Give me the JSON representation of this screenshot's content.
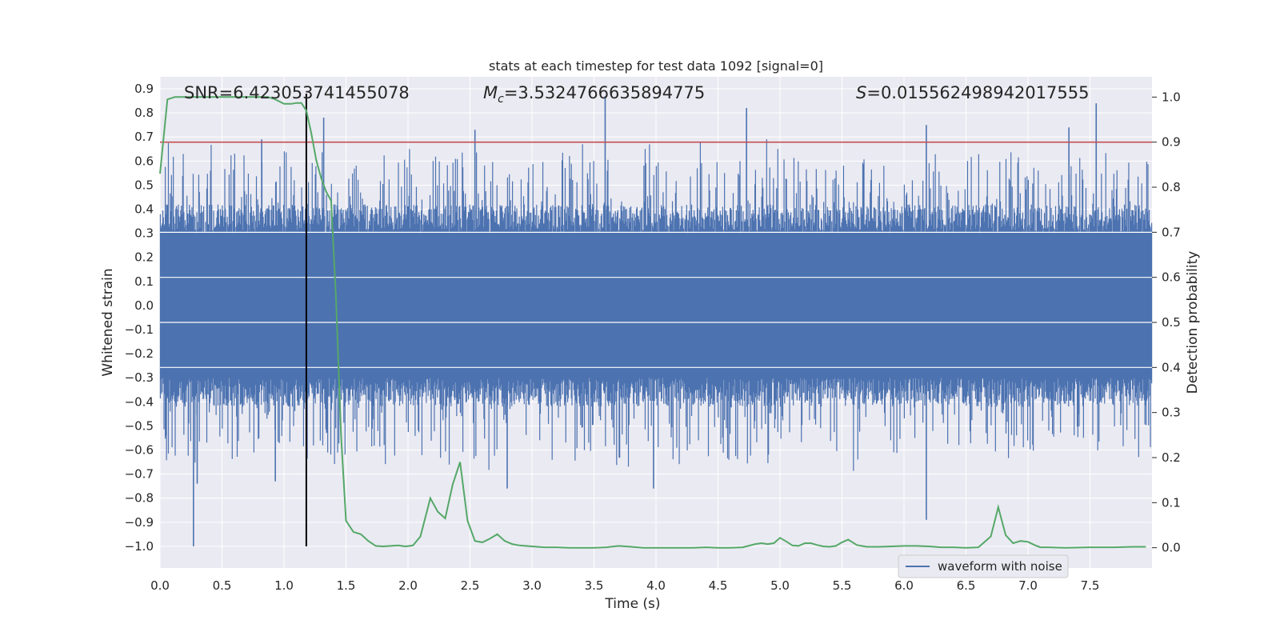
{
  "chart_data": {
    "type": "line",
    "title": "stats at each timestep for test data 1092 [signal=0]",
    "xlabel": "Time (s)",
    "ylabel": "Whitened strain",
    "y2label": "Detection probability",
    "xlim": [
      0.0,
      8.0
    ],
    "ylim": [
      -1.09,
      0.95
    ],
    "y2lim": [
      -0.045,
      1.045
    ],
    "x_ticks": [
      "0.0",
      "0.5",
      "1.0",
      "1.5",
      "2.0",
      "2.5",
      "3.0",
      "3.5",
      "4.0",
      "4.5",
      "5.0",
      "5.5",
      "6.0",
      "6.5",
      "7.0",
      "7.5"
    ],
    "y_ticks": [
      "0.9",
      "0.8",
      "0.7",
      "0.6",
      "0.5",
      "0.4",
      "0.3",
      "0.2",
      "0.1",
      "0.0",
      "−0.1",
      "−0.2",
      "−0.3",
      "−0.4",
      "−0.5",
      "−0.6",
      "−0.7",
      "−0.8",
      "−0.9",
      "−1.0"
    ],
    "y2_ticks": [
      "1.0",
      "0.9",
      "0.8",
      "0.7",
      "0.6",
      "0.5",
      "0.4",
      "0.3",
      "0.2",
      "0.1",
      "0.0"
    ],
    "grid": true,
    "legend_position": "lower-right",
    "annotations": {
      "snr": "SNR=6.423053741455078",
      "mc_symbol": "M",
      "mc_subscript": "c",
      "mc_value": "=3.5324766635894775",
      "s_symbol": "S",
      "s_value": "=0.015562498942017555"
    },
    "threshold_y2": 0.9,
    "marker_x": 1.18,
    "series": [
      {
        "name": "waveform with noise",
        "color": "#4c72b0",
        "note_shape": "noise-like waveform filling roughly -0.3 to 0.3 with spikes up to about ±0.9",
        "peaks": [
          {
            "x": 0.27,
            "y": -1.0
          },
          {
            "x": 0.3,
            "y": -0.74
          },
          {
            "x": 0.82,
            "y": 0.69
          },
          {
            "x": 0.93,
            "y": -0.73
          },
          {
            "x": 1.32,
            "y": 0.78
          },
          {
            "x": 2.54,
            "y": 0.73
          },
          {
            "x": 2.8,
            "y": -0.76
          },
          {
            "x": 3.59,
            "y": 0.87
          },
          {
            "x": 3.98,
            "y": -0.76
          },
          {
            "x": 4.73,
            "y": 0.82
          },
          {
            "x": 6.18,
            "y": -0.89
          },
          {
            "x": 6.18,
            "y": 0.75
          },
          {
            "x": 7.55,
            "y": 0.84
          },
          {
            "x": 7.33,
            "y": 0.74
          }
        ]
      },
      {
        "name": "",
        "axis": "right",
        "color": "#55a868",
        "x": [
          0.0,
          0.06,
          0.12,
          0.2,
          0.3,
          0.4,
          0.5,
          0.6,
          0.7,
          0.8,
          0.87,
          0.93,
          1.0,
          1.06,
          1.1,
          1.14,
          1.18,
          1.22,
          1.26,
          1.3,
          1.34,
          1.38,
          1.42,
          1.46,
          1.5,
          1.56,
          1.62,
          1.68,
          1.74,
          1.8,
          1.86,
          1.92,
          1.98,
          2.04,
          2.1,
          2.18,
          2.24,
          2.3,
          2.36,
          2.42,
          2.48,
          2.54,
          2.6,
          2.66,
          2.72,
          2.78,
          2.84,
          2.9,
          3.0,
          3.1,
          3.2,
          3.3,
          3.4,
          3.5,
          3.6,
          3.7,
          3.8,
          3.9,
          4.0,
          4.1,
          4.2,
          4.3,
          4.4,
          4.5,
          4.6,
          4.7,
          4.8,
          4.85,
          4.9,
          4.95,
          5.0,
          5.05,
          5.1,
          5.15,
          5.2,
          5.25,
          5.3,
          5.35,
          5.4,
          5.45,
          5.5,
          5.55,
          5.62,
          5.7,
          5.8,
          5.9,
          6.0,
          6.1,
          6.2,
          6.3,
          6.4,
          6.5,
          6.6,
          6.7,
          6.76,
          6.82,
          6.88,
          6.94,
          7.0,
          7.06,
          7.1,
          7.16,
          7.3,
          7.5,
          7.7,
          7.85,
          7.95
        ],
        "values": [
          0.83,
          0.995,
          1.0,
          1.0,
          1.0,
          1.0,
          1.0,
          1.0,
          1.0,
          1.0,
          1.0,
          0.995,
          0.985,
          0.985,
          0.987,
          0.987,
          0.97,
          0.92,
          0.86,
          0.82,
          0.79,
          0.77,
          0.55,
          0.25,
          0.06,
          0.035,
          0.03,
          0.015,
          0.004,
          0.003,
          0.004,
          0.005,
          0.003,
          0.005,
          0.025,
          0.11,
          0.08,
          0.065,
          0.14,
          0.19,
          0.06,
          0.015,
          0.012,
          0.02,
          0.03,
          0.015,
          0.008,
          0.005,
          0.003,
          0.001,
          0.001,
          0.0,
          0.0,
          0.0,
          0.001,
          0.004,
          0.002,
          0.0,
          0.0,
          0.0,
          0.0,
          0.0,
          0.001,
          0.0,
          0.0,
          0.001,
          0.008,
          0.01,
          0.008,
          0.01,
          0.022,
          0.014,
          0.005,
          0.004,
          0.01,
          0.01,
          0.006,
          0.003,
          0.002,
          0.004,
          0.012,
          0.018,
          0.006,
          0.002,
          0.002,
          0.003,
          0.004,
          0.004,
          0.003,
          0.001,
          0.001,
          0.0,
          0.001,
          0.025,
          0.09,
          0.028,
          0.01,
          0.015,
          0.013,
          0.005,
          0.001,
          0.001,
          0.0,
          0.001,
          0.001,
          0.002,
          0.002
        ]
      },
      {
        "name": "",
        "axis": "right",
        "color": "#c44e52",
        "values": [
          0.9
        ]
      }
    ]
  }
}
